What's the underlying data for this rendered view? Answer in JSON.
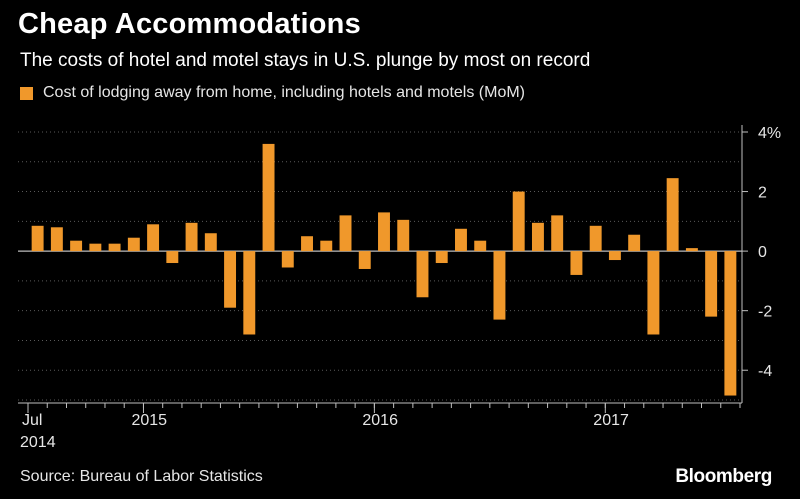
{
  "title": "Cheap Accommodations",
  "subtitle": "The costs of hotel and motel stays in U.S. plunge by most on record",
  "source": "Source: Bureau of Labor Statistics",
  "brand": "Bloomberg",
  "colors": {
    "bar": "#f0982b",
    "grid": "#5a5a5a",
    "axis": "#bfbfbf",
    "background": "#000000"
  },
  "chart_data": {
    "type": "bar",
    "title": "Cheap Accommodations",
    "subtitle": "The costs of hotel and motel stays in U.S. plunge by most on record",
    "series": [
      {
        "name": "Cost of lodging away from home, including hotels and motels (MoM)",
        "values": [
          0.85,
          0.8,
          0.35,
          0.25,
          0.25,
          0.45,
          0.9,
          -0.4,
          0.95,
          0.6,
          -1.9,
          -2.8,
          3.6,
          -0.55,
          0.5,
          0.35,
          1.2,
          -0.6,
          1.3,
          1.05,
          -1.55,
          -0.4,
          0.75,
          0.35,
          -2.3,
          2.0,
          0.95,
          1.2,
          -0.8,
          0.85,
          -0.3,
          0.55,
          -2.8,
          2.45,
          0.1,
          -2.2,
          -4.85
        ]
      }
    ],
    "categories": [
      "2014-07",
      "2014-08",
      "2014-09",
      "2014-10",
      "2014-11",
      "2014-12",
      "2015-01",
      "2015-02",
      "2015-03",
      "2015-04",
      "2015-05",
      "2015-06",
      "2015-07",
      "2015-08",
      "2015-09",
      "2015-10",
      "2015-11",
      "2015-12",
      "2016-01",
      "2016-02",
      "2016-03",
      "2016-04",
      "2016-05",
      "2016-06",
      "2016-07",
      "2016-08",
      "2016-09",
      "2016-10",
      "2016-11",
      "2016-12",
      "2017-01",
      "2017-02",
      "2017-03",
      "2017-04",
      "2017-05",
      "2017-06",
      "2017-07"
    ],
    "x_tick_labels": [
      {
        "category_index": 0,
        "label": "Jul",
        "sublabel": "2014"
      },
      {
        "category_index": 6,
        "label": "2015"
      },
      {
        "category_index": 18,
        "label": "2016"
      },
      {
        "category_index": 30,
        "label": "2017"
      }
    ],
    "y_ticks": [
      {
        "value": 4,
        "label": "4%"
      },
      {
        "value": 2,
        "label": "2"
      },
      {
        "value": 0,
        "label": "0"
      },
      {
        "value": -2,
        "label": "-2"
      },
      {
        "value": -4,
        "label": "-4"
      }
    ],
    "ylim": [
      -5,
      4
    ],
    "grid": true,
    "legend_position": "top-left",
    "ylabel": "",
    "xlabel": ""
  }
}
